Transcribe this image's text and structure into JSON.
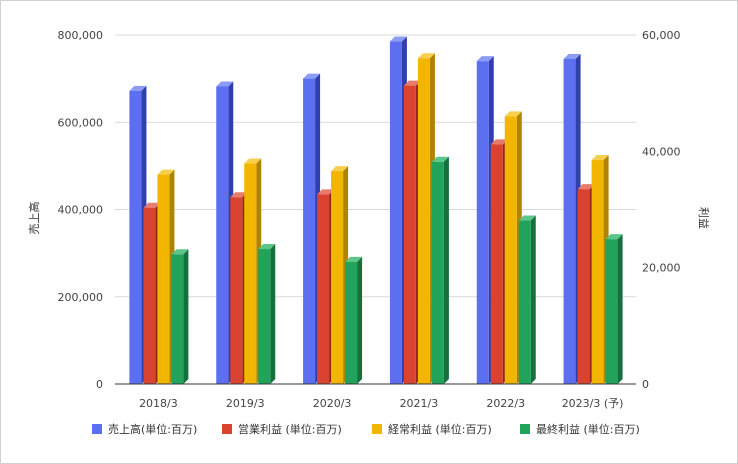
{
  "chart_data": {
    "type": "bar",
    "title": "",
    "categories": [
      "2018/3",
      "2019/3",
      "2020/3",
      "2021/3",
      "2022/3",
      "2023/3 (予)"
    ],
    "xlabel": "",
    "ylabel_left": "売上高",
    "ylabel_right": "利益",
    "ylim_left": [
      0,
      800000
    ],
    "ylim_right": [
      0,
      60000
    ],
    "yticks_left": [
      "0",
      "200,000",
      "400,000",
      "600,000",
      "800,000"
    ],
    "yticks_right": [
      "0",
      "20,000",
      "40,000",
      "60,000"
    ],
    "grid": true,
    "legend_position": "bottom",
    "series": [
      {
        "name": "売上高(単位:百万)",
        "axis": "left",
        "color": "#5b6ff0",
        "side": "#2f3fae",
        "top": "#8c9bf5",
        "values": [
          672000,
          682000,
          700000,
          785000,
          740000,
          745000
        ]
      },
      {
        "name": "営業利益 (単位:百万)",
        "axis": "right",
        "color": "#d9432f",
        "side": "#95271a",
        "top": "#e77b6c",
        "values": [
          30300,
          32100,
          32600,
          51300,
          41200,
          33500
        ]
      },
      {
        "name": "経常利益 (単位:百万)",
        "axis": "right",
        "color": "#f2b600",
        "side": "#b08300",
        "top": "#f7cf4f",
        "values": [
          36000,
          37900,
          36600,
          56000,
          46000,
          38500
        ]
      },
      {
        "name": "最終利益 (単位:百万)",
        "axis": "right",
        "color": "#21a35b",
        "side": "#14713c",
        "top": "#5cc68a",
        "values": [
          22300,
          23200,
          21000,
          38200,
          28100,
          24900
        ]
      }
    ]
  }
}
